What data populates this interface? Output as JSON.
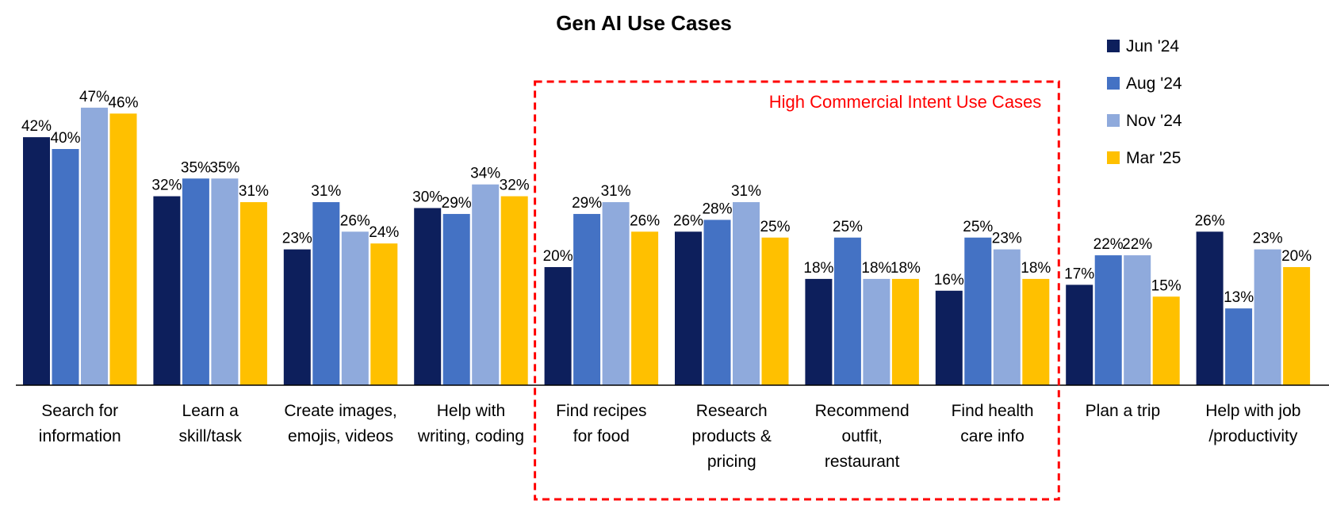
{
  "chart_data": {
    "type": "bar",
    "title": "Gen AI Use Cases",
    "categories": [
      [
        "Search for",
        "information"
      ],
      [
        "Learn a",
        "skill/task"
      ],
      [
        "Create images,",
        "emojis, videos"
      ],
      [
        "Help with",
        "writing, coding"
      ],
      [
        "Find recipes",
        "for food"
      ],
      [
        "Research",
        "products &",
        "pricing"
      ],
      [
        "Recommend",
        "outfit,",
        "restaurant"
      ],
      [
        "Find health",
        "care info"
      ],
      [
        "Plan a trip"
      ],
      [
        "Help with job",
        "/productivity"
      ]
    ],
    "series": [
      {
        "name": "Jun '24",
        "color": "#0d1f5c",
        "values": [
          42,
          32,
          23,
          30,
          20,
          26,
          18,
          16,
          17,
          26
        ]
      },
      {
        "name": "Aug '24",
        "color": "#4472c4",
        "values": [
          40,
          35,
          31,
          29,
          29,
          28,
          25,
          25,
          22,
          13
        ]
      },
      {
        "name": "Nov '24",
        "color": "#8faadc",
        "values": [
          47,
          35,
          26,
          34,
          31,
          31,
          18,
          23,
          22,
          23
        ]
      },
      {
        "name": "Mar '25",
        "color": "#ffc000",
        "values": [
          46,
          31,
          24,
          32,
          26,
          25,
          18,
          18,
          15,
          20
        ]
      }
    ],
    "value_suffix": "%",
    "legend_placement": "top-right",
    "grid": false,
    "ylim": [
      0,
      50
    ],
    "highlight": {
      "label": "High Commercial Intent Use Cases",
      "color": "#ff0000",
      "category_range": [
        4,
        7
      ]
    }
  }
}
